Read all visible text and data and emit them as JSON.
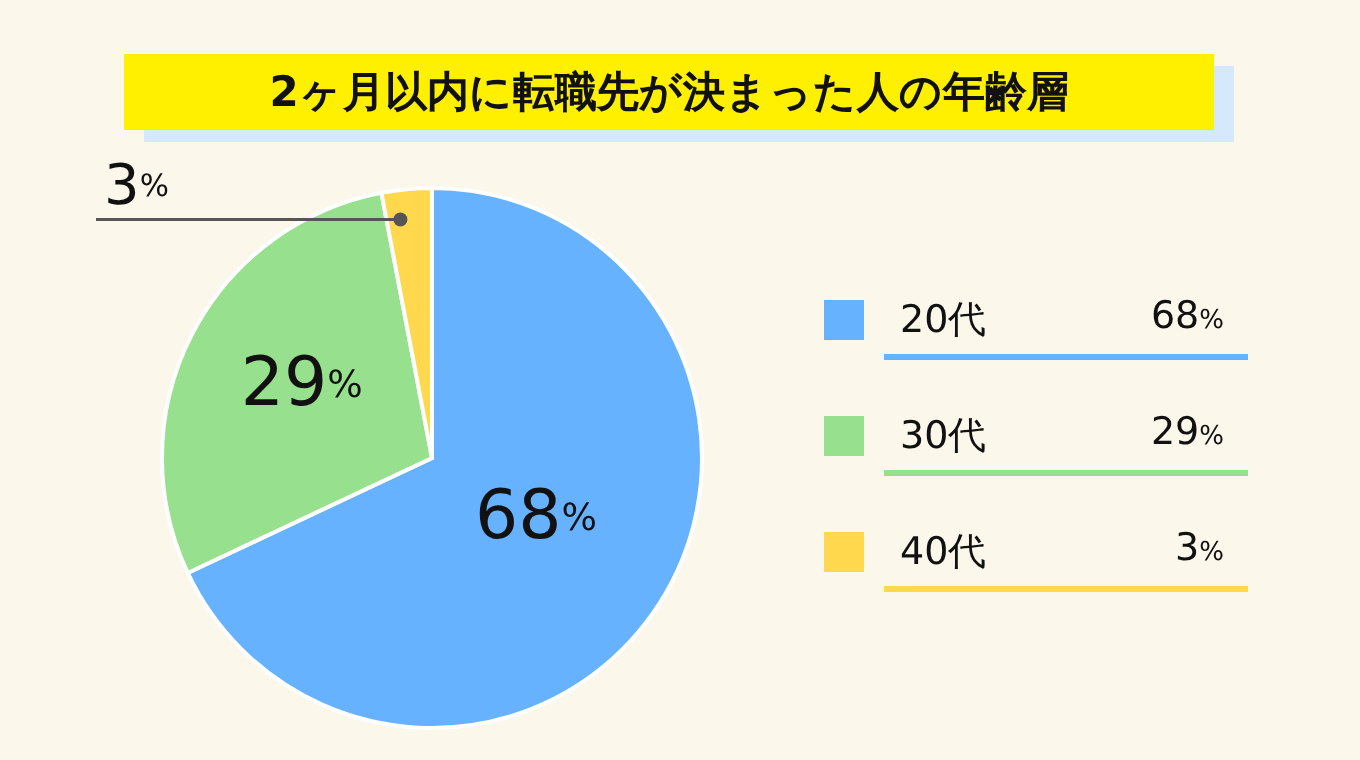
{
  "chart_data": {
    "type": "pie",
    "title": "2ヶ月以内に転職先が決まった人の年齢層",
    "categories": [
      "20代",
      "30代",
      "40代"
    ],
    "values": [
      68,
      29,
      3
    ],
    "colors": [
      "#66b2ff",
      "#97e08d",
      "#ffd84d"
    ],
    "value_labels": [
      "68%",
      "29%",
      "3%"
    ],
    "legend": "right"
  }
}
